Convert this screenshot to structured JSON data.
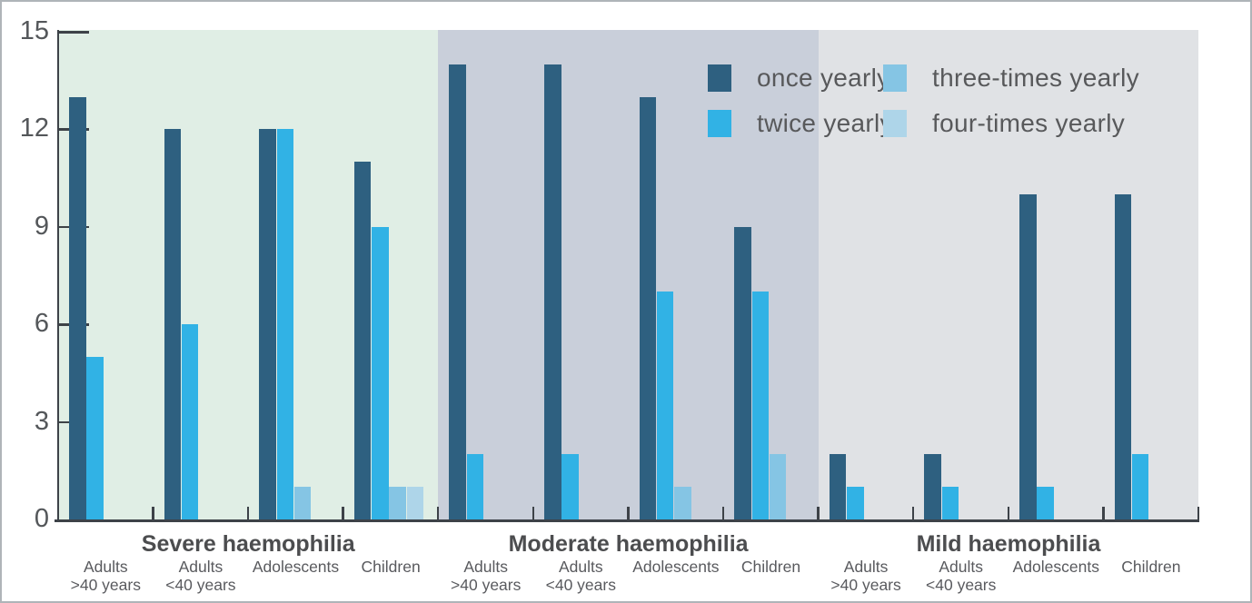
{
  "figure": {
    "background": "#ffffff",
    "border_color": "#afb4b8"
  },
  "axis": {
    "ymax": 15,
    "ticks": [
      0,
      3,
      6,
      9,
      12,
      15
    ],
    "line_color": "#3d4248",
    "label_color": "#54575a"
  },
  "legend": {
    "text_color": "#58595b",
    "items": [
      {
        "label": "once yearly",
        "color": "#2e6080",
        "swatch": "once-yearly-swatch"
      },
      {
        "label": "twice yearly",
        "color": "#31b2e5",
        "swatch": "twice-yearly-swatch"
      },
      {
        "label": "three-times yearly",
        "color": "#85c5e4",
        "swatch": "three-times-yearly-swatch"
      },
      {
        "label": "four-times yearly",
        "color": "#aed5e9",
        "swatch": "four-times-yearly-swatch"
      }
    ]
  },
  "chart_data": {
    "type": "bar",
    "title": "",
    "xlabel": "",
    "ylabel": "",
    "ylim": [
      0,
      15
    ],
    "grid": false,
    "legend_position": "top-right",
    "series_names": [
      "once yearly",
      "twice yearly",
      "three-times yearly",
      "four-times yearly"
    ],
    "series_colors": [
      "#2e6080",
      "#31b2e5",
      "#85c5e4",
      "#aed5e9"
    ],
    "sections": [
      {
        "title": "Severe haemophilia",
        "background": "#e0eee5",
        "groups": [
          {
            "label_lines": [
              "Adults",
              ">40 years"
            ],
            "values": [
              13,
              5,
              0,
              0
            ]
          },
          {
            "label_lines": [
              "Adults",
              "<40 years"
            ],
            "values": [
              12,
              6,
              0,
              0
            ]
          },
          {
            "label_lines": [
              "Adolescents"
            ],
            "values": [
              12,
              12,
              1,
              0
            ]
          },
          {
            "label_lines": [
              "Children"
            ],
            "values": [
              11,
              9,
              1,
              1
            ]
          }
        ]
      },
      {
        "title": "Moderate haemophilia",
        "background": "#c9cfda",
        "groups": [
          {
            "label_lines": [
              "Adults",
              ">40 years"
            ],
            "values": [
              14,
              2,
              0,
              0
            ]
          },
          {
            "label_lines": [
              "Adults",
              "<40 years"
            ],
            "values": [
              14,
              2,
              0,
              0
            ]
          },
          {
            "label_lines": [
              "Adolescents"
            ],
            "values": [
              13,
              7,
              1,
              0
            ]
          },
          {
            "label_lines": [
              "Children"
            ],
            "values": [
              9,
              7,
              2,
              0
            ]
          }
        ]
      },
      {
        "title": "Mild haemophilia",
        "background": "#e0e2e5",
        "groups": [
          {
            "label_lines": [
              "Adults",
              ">40 years"
            ],
            "values": [
              2,
              1,
              0,
              0
            ]
          },
          {
            "label_lines": [
              "Adults",
              "<40 years"
            ],
            "values": [
              2,
              1,
              0,
              0
            ]
          },
          {
            "label_lines": [
              "Adolescents"
            ],
            "values": [
              10,
              1,
              0,
              0
            ]
          },
          {
            "label_lines": [
              "Children"
            ],
            "values": [
              10,
              2,
              0,
              0
            ]
          }
        ]
      }
    ]
  }
}
